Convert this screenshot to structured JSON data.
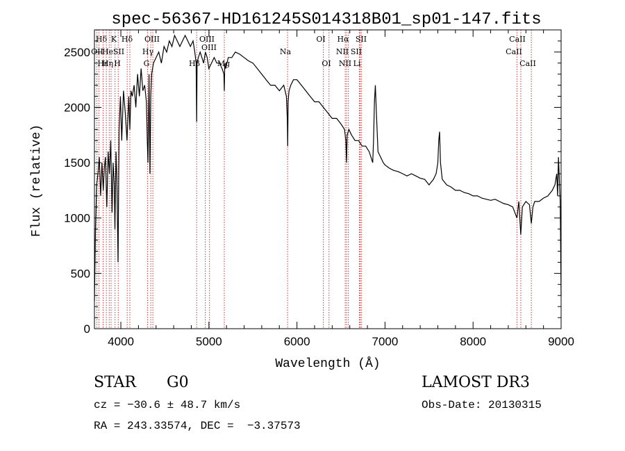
{
  "chart_data": {
    "type": "line",
    "title": "spec-56367-HD161245S014318B01_sp01-147.fits",
    "xlabel": "Wavelength (Å)",
    "ylabel": "Flux (relative)",
    "xlim": [
      3700,
      9000
    ],
    "ylim": [
      0,
      2700
    ],
    "x_ticks": [
      4000,
      5000,
      6000,
      7000,
      8000,
      9000
    ],
    "y_ticks": [
      0,
      500,
      1000,
      1500,
      2000,
      2500
    ],
    "grid": false,
    "series": [
      {
        "x": [
          3700,
          3712,
          3725,
          3740,
          3755,
          3770,
          3785,
          3800,
          3812,
          3825,
          3840,
          3855,
          3870,
          3885,
          3900,
          3912,
          3925,
          3933,
          3945,
          3955,
          3968,
          3980,
          3995,
          4010,
          4030,
          4050,
          4070,
          4090,
          4102,
          4115,
          4130,
          4150,
          4170,
          4190,
          4210,
          4230,
          4250,
          4270,
          4290,
          4300,
          4308,
          4320,
          4330,
          4340,
          4350,
          4370,
          4400,
          4430,
          4460,
          4490,
          4520,
          4550,
          4580,
          4610,
          4640,
          4670,
          4700,
          4730,
          4760,
          4790,
          4820,
          4840,
          4855,
          4861,
          4866,
          4880,
          4900,
          4920,
          4940,
          4960,
          4980,
          5000,
          5030,
          5060,
          5090,
          5120,
          5150,
          5170,
          5175,
          5180,
          5190,
          5220,
          5260,
          5300,
          5350,
          5400,
          5450,
          5500,
          5550,
          5600,
          5650,
          5700,
          5750,
          5800,
          5850,
          5880,
          5890,
          5895,
          5900,
          5910,
          5930,
          5960,
          6000,
          6050,
          6100,
          6150,
          6200,
          6250,
          6300,
          6350,
          6400,
          6450,
          6500,
          6540,
          6555,
          6563,
          6570,
          6590,
          6620,
          6660,
          6700,
          6740,
          6780,
          6820,
          6860,
          6870,
          6880,
          6890,
          6900,
          6920,
          6950,
          6980,
          7000,
          7050,
          7100,
          7150,
          7200,
          7250,
          7300,
          7350,
          7400,
          7450,
          7500,
          7550,
          7580,
          7600,
          7610,
          7620,
          7630,
          7650,
          7700,
          7750,
          7800,
          7850,
          7900,
          7950,
          8000,
          8050,
          8100,
          8150,
          8200,
          8250,
          8300,
          8350,
          8400,
          8450,
          8498,
          8520,
          8542,
          8560,
          8600,
          8640,
          8662,
          8680,
          8700,
          8750,
          8800,
          8850,
          8900,
          8930,
          8950,
          8960,
          8970,
          8990,
          9000
        ],
        "y": [
          250,
          900,
          1300,
          1400,
          1550,
          1200,
          1500,
          1250,
          1450,
          1550,
          1100,
          1600,
          1400,
          1700,
          1050,
          1500,
          1300,
          900,
          1600,
          1350,
          600,
          1800,
          2100,
          1700,
          2150,
          1950,
          1700,
          2100,
          1800,
          2150,
          2100,
          2200,
          2000,
          2300,
          2100,
          2350,
          2150,
          2200,
          2050,
          1700,
          1500,
          2300,
          1400,
          2100,
          2300,
          2400,
          2450,
          2500,
          2400,
          2550,
          2500,
          2600,
          2550,
          2650,
          2600,
          2550,
          2600,
          2650,
          2600,
          2550,
          2600,
          2500,
          2400,
          1870,
          2400,
          2450,
          2500,
          2450,
          2400,
          2500,
          2450,
          2350,
          2400,
          2450,
          2400,
          2400,
          2350,
          2300,
          2150,
          2400,
          2350,
          2450,
          2450,
          2500,
          2480,
          2450,
          2420,
          2400,
          2350,
          2300,
          2250,
          2200,
          2200,
          2150,
          2200,
          2100,
          1900,
          1650,
          2050,
          2150,
          2200,
          2250,
          2250,
          2200,
          2150,
          2100,
          2050,
          2050,
          2000,
          1950,
          1900,
          1900,
          1850,
          1800,
          1700,
          1500,
          1750,
          1800,
          1750,
          1700,
          1700,
          1650,
          1650,
          1600,
          1500,
          1700,
          2050,
          2200,
          2000,
          1600,
          1550,
          1500,
          1480,
          1450,
          1430,
          1420,
          1400,
          1380,
          1400,
          1380,
          1360,
          1350,
          1300,
          1350,
          1400,
          1500,
          1700,
          1780,
          1500,
          1350,
          1300,
          1280,
          1250,
          1250,
          1230,
          1220,
          1200,
          1200,
          1180,
          1170,
          1160,
          1170,
          1150,
          1130,
          1120,
          1100,
          1000,
          1150,
          850,
          1100,
          1150,
          1120,
          950,
          1100,
          1150,
          1150,
          1180,
          1200,
          1250,
          1300,
          1400,
          1200,
          1550,
          1150,
          300
        ]
      }
    ],
    "line_ids": [
      {
        "label": "Hδ",
        "x": 4102
      },
      {
        "label": "K",
        "x": 3934
      },
      {
        "label": "Hδ",
        "x": 4102
      },
      {
        "label": "OII",
        "x": 3727
      },
      {
        "label": "He",
        "x": 3889
      },
      {
        "label": "SII",
        "x": 4072
      },
      {
        "label": "Hγ",
        "x": 4340
      },
      {
        "label": "OIII",
        "x": 4363
      },
      {
        "label": "OIII",
        "x": 4959
      },
      {
        "label": "OIII",
        "x": 5007
      },
      {
        "label": "Hβ",
        "x": 4861
      },
      {
        "label": "Mg",
        "x": 5175
      },
      {
        "label": "G",
        "x": 4304
      },
      {
        "label": "Hε",
        "x": 3970
      },
      {
        "label": "Hη",
        "x": 3835
      },
      {
        "label": "H",
        "x": 3968
      },
      {
        "label": "Na",
        "x": 5893
      },
      {
        "label": "OI",
        "x": 6300
      },
      {
        "label": "OI",
        "x": 6364
      },
      {
        "label": "Hα",
        "x": 6563
      },
      {
        "label": "NII",
        "x": 6548
      },
      {
        "label": "NII",
        "x": 6584
      },
      {
        "label": "SII",
        "x": 6717
      },
      {
        "label": "SII",
        "x": 6731
      },
      {
        "label": "Li",
        "x": 6708
      },
      {
        "label": "CaII",
        "x": 8498
      },
      {
        "label": "CaII",
        "x": 8542
      },
      {
        "label": "CaII",
        "x": 8662
      }
    ],
    "line_marker_x": [
      3727,
      3750,
      3798,
      3835,
      3868,
      3889,
      3934,
      3970,
      4072,
      4102,
      4304,
      4340,
      4363,
      4861,
      4959,
      5007,
      5175,
      5893,
      6300,
      6364,
      6548,
      6563,
      6584,
      6708,
      6717,
      6731,
      8498,
      8542,
      8662
    ]
  },
  "info": {
    "object_class": "STAR",
    "subclass": "G0",
    "survey": "LAMOST DR3",
    "redshift": "cz = −30.6 ± 48.7 km/s",
    "obs_date": "Obs-Date: 20130315",
    "coords": "RA = 243.33574, DEC =  −3.37573"
  }
}
